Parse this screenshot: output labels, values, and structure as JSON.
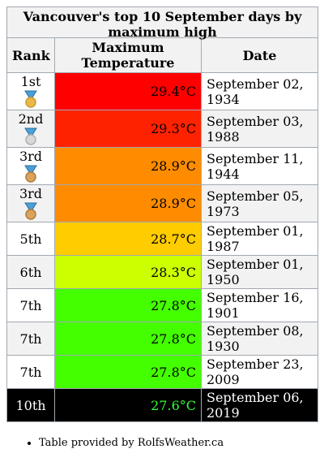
{
  "title": "Vancouver's top 10 September days by maximum high",
  "table": {
    "headers": [
      "Rank",
      "Maximum Temperature",
      "Date"
    ],
    "rows": [
      {
        "rank": "1st",
        "medal": "gold",
        "temperature": "29.4°C",
        "date": "September 02, 1934",
        "color": "#ff0000",
        "background": "#ffffff",
        "text_color": "#000000",
        "temperature_color": "#000000"
      },
      {
        "rank": "2nd",
        "medal": "silver",
        "temperature": "29.3°C",
        "date": "September 03, 1988",
        "color": "#ff2200",
        "background": "#f2f2f2",
        "text_color": "#000000",
        "temperature_color": "#000000"
      },
      {
        "rank": "3rd",
        "medal": "bronze",
        "temperature": "28.9°C",
        "date": "September 11, 1944",
        "color": "#ff8c00",
        "background": "#ffffff",
        "text_color": "#000000",
        "temperature_color": "#000000"
      },
      {
        "rank": "3rd",
        "medal": "bronze",
        "temperature": "28.9°C",
        "date": "September 05, 1973",
        "color": "#ff8c00",
        "background": "#f2f2f2",
        "text_color": "#000000",
        "temperature_color": "#000000"
      },
      {
        "rank": "5th",
        "temperature": "28.7°C",
        "date": "September 01, 1987",
        "color": "#ffcc00",
        "background": "#ffffff",
        "text_color": "#000000",
        "temperature_color": "#000000"
      },
      {
        "rank": "6th",
        "temperature": "28.3°C",
        "date": "September 01, 1950",
        "color": "#ccff00",
        "background": "#f2f2f2",
        "text_color": "#000000",
        "temperature_color": "#000000"
      },
      {
        "rank": "7th",
        "temperature": "27.8°C",
        "date": "September 16, 1901",
        "color": "#44ff00",
        "background": "#ffffff",
        "text_color": "#000000",
        "temperature_color": "#000000"
      },
      {
        "rank": "7th",
        "temperature": "27.8°C",
        "date": "September 08, 1930",
        "color": "#44ff00",
        "background": "#f2f2f2",
        "text_color": "#000000",
        "temperature_color": "#000000"
      },
      {
        "rank": "7th",
        "temperature": "27.8°C",
        "date": "September 23, 2009",
        "color": "#44ff00",
        "background": "#ffffff",
        "text_color": "#000000",
        "temperature_color": "#000000"
      },
      {
        "rank": "10th",
        "temperature": "27.6°C",
        "date": "September 06, 2019",
        "color": "#000000",
        "background": "#000000",
        "text_color": "#ffffff",
        "temperature_color": "#33ff33"
      }
    ]
  },
  "footer": "Table provided by RolfsWeather.ca"
}
